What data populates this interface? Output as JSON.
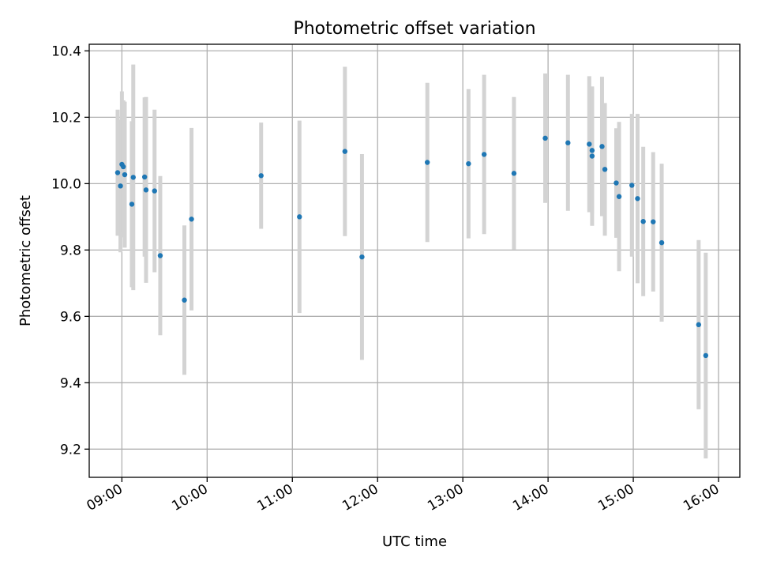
{
  "chart_data": {
    "type": "scatter",
    "title": "Photometric offset variation",
    "xlabel": "UTC time",
    "ylabel": "Photometric offset",
    "xlim": [
      "08:37",
      "16:15"
    ],
    "ylim": [
      9.115,
      10.42
    ],
    "x_ticks": [
      "09:00",
      "10:00",
      "11:00",
      "12:00",
      "13:00",
      "14:00",
      "15:00",
      "16:00"
    ],
    "y_ticks": [
      9.2,
      9.4,
      9.6,
      9.8,
      10.0,
      10.2,
      10.4
    ],
    "y_tick_labels": [
      "9.2",
      "9.4",
      "9.6",
      "9.8",
      "10.0",
      "10.2",
      "10.4"
    ],
    "grid": true,
    "marker_color": "#1f77b4",
    "errorbar_color": "#d3d3d3",
    "points": [
      {
        "x": "08:57",
        "y": 10.033,
        "err": 0.19
      },
      {
        "x": "08:59",
        "y": 9.993,
        "err": 0.2
      },
      {
        "x": "09:00",
        "y": 10.058,
        "err": 0.22
      },
      {
        "x": "09:01",
        "y": 10.051,
        "err": 0.2
      },
      {
        "x": "09:02",
        "y": 10.027,
        "err": 0.22
      },
      {
        "x": "09:07",
        "y": 9.938,
        "err": 0.25
      },
      {
        "x": "09:08",
        "y": 10.019,
        "err": 0.34
      },
      {
        "x": "09:16",
        "y": 10.02,
        "err": 0.24
      },
      {
        "x": "09:17",
        "y": 9.981,
        "err": 0.28
      },
      {
        "x": "09:23",
        "y": 9.978,
        "err": 0.245
      },
      {
        "x": "09:27",
        "y": 9.783,
        "err": 0.24
      },
      {
        "x": "09:44",
        "y": 9.649,
        "err": 0.225
      },
      {
        "x": "09:49",
        "y": 9.893,
        "err": 0.275
      },
      {
        "x": "10:38",
        "y": 10.024,
        "err": 0.16
      },
      {
        "x": "11:05",
        "y": 9.9,
        "err": 0.29
      },
      {
        "x": "11:37",
        "y": 10.097,
        "err": 0.255
      },
      {
        "x": "11:49",
        "y": 9.779,
        "err": 0.31
      },
      {
        "x": "12:35",
        "y": 10.064,
        "err": 0.24
      },
      {
        "x": "13:04",
        "y": 10.06,
        "err": 0.225
      },
      {
        "x": "13:15",
        "y": 10.088,
        "err": 0.24
      },
      {
        "x": "13:36",
        "y": 10.031,
        "err": 0.23
      },
      {
        "x": "13:58",
        "y": 10.137,
        "err": 0.195
      },
      {
        "x": "14:14",
        "y": 10.123,
        "err": 0.205
      },
      {
        "x": "14:29",
        "y": 10.119,
        "err": 0.205
      },
      {
        "x": "14:31",
        "y": 10.1,
        "err": 0.19
      },
      {
        "x": "14:31",
        "y": 10.083,
        "err": 0.21
      },
      {
        "x": "14:38",
        "y": 10.112,
        "err": 0.21
      },
      {
        "x": "14:40",
        "y": 10.043,
        "err": 0.2
      },
      {
        "x": "14:48",
        "y": 10.002,
        "err": 0.165
      },
      {
        "x": "14:50",
        "y": 9.961,
        "err": 0.225
      },
      {
        "x": "14:59",
        "y": 9.995,
        "err": 0.215
      },
      {
        "x": "15:03",
        "y": 9.955,
        "err": 0.255
      },
      {
        "x": "15:07",
        "y": 9.886,
        "err": 0.225
      },
      {
        "x": "15:14",
        "y": 9.885,
        "err": 0.21
      },
      {
        "x": "15:20",
        "y": 9.822,
        "err": 0.238
      },
      {
        "x": "15:46",
        "y": 9.575,
        "err": 0.255
      },
      {
        "x": "15:51",
        "y": 9.482,
        "err": 0.31
      }
    ]
  }
}
